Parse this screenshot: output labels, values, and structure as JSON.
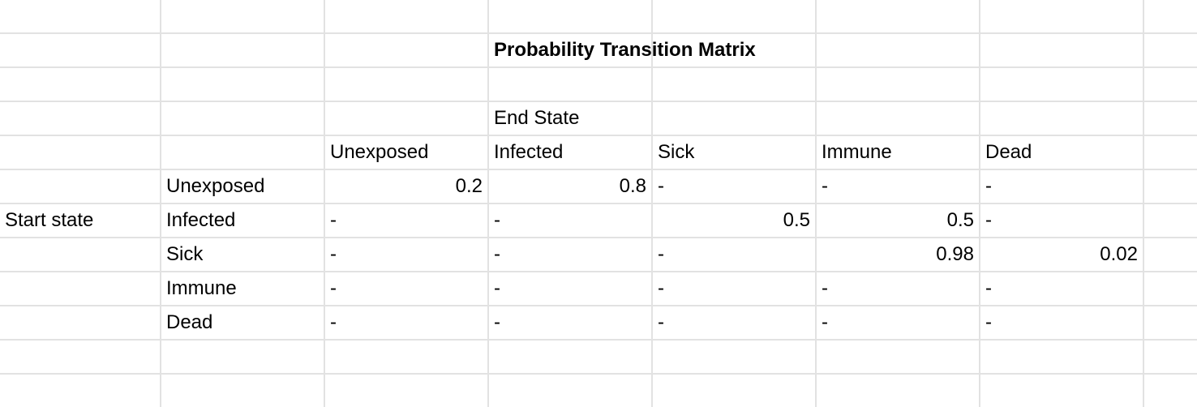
{
  "sheet": {
    "title": "Probability Transition Matrix",
    "end_state_label": "End State",
    "start_state_label": "Start state",
    "column_headers": [
      "Unexposed",
      "Infected",
      "Sick",
      "Immune",
      "Dead"
    ],
    "rows": [
      {
        "label": "Unexposed",
        "cells": [
          "0.2",
          "0.8",
          "-",
          "-",
          "-"
        ]
      },
      {
        "label": "Infected",
        "cells": [
          "-",
          "-",
          "0.5",
          "0.5",
          "-"
        ]
      },
      {
        "label": "Sick",
        "cells": [
          "-",
          "-",
          "-",
          "0.98",
          "0.02"
        ]
      },
      {
        "label": "Immune",
        "cells": [
          "-",
          "-",
          "-",
          "-",
          "-"
        ]
      },
      {
        "label": "Dead",
        "cells": [
          "-",
          "-",
          "-",
          "-",
          "-"
        ]
      }
    ]
  }
}
